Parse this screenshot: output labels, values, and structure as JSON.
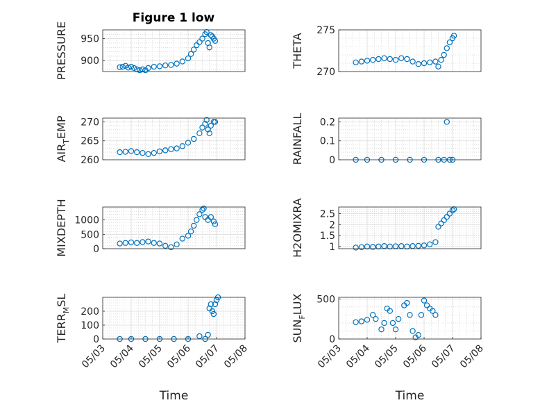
{
  "title": "Figure 1 low",
  "chart_data": [
    {
      "type": "scatter",
      "ylabel": "PRESSURE",
      "ylim": [
        875,
        970
      ],
      "yticks": [
        "900",
        "950"
      ],
      "ytick_values": [
        900,
        950
      ],
      "xlim": [
        0,
        5
      ],
      "xticks": [],
      "xlabel": "",
      "grid": true,
      "color": "#0072BD",
      "points": [
        [
          0.6,
          885
        ],
        [
          0.7,
          886
        ],
        [
          0.8,
          888
        ],
        [
          0.9,
          884
        ],
        [
          1.0,
          886
        ],
        [
          1.1,
          883
        ],
        [
          1.2,
          880
        ],
        [
          1.3,
          878
        ],
        [
          1.4,
          880
        ],
        [
          1.5,
          878
        ],
        [
          1.6,
          883
        ],
        [
          1.8,
          886
        ],
        [
          2.0,
          887
        ],
        [
          2.2,
          889
        ],
        [
          2.4,
          890
        ],
        [
          2.6,
          893
        ],
        [
          2.8,
          898
        ],
        [
          3.0,
          905
        ],
        [
          3.1,
          915
        ],
        [
          3.2,
          925
        ],
        [
          3.3,
          935
        ],
        [
          3.4,
          942
        ],
        [
          3.5,
          950
        ],
        [
          3.6,
          960
        ],
        [
          3.65,
          965
        ],
        [
          3.7,
          940
        ],
        [
          3.75,
          930
        ],
        [
          3.8,
          958
        ],
        [
          3.85,
          955
        ],
        [
          3.9,
          950
        ],
        [
          3.95,
          945
        ]
      ]
    },
    {
      "type": "scatter",
      "ylabel": "THETA",
      "ylim": [
        270,
        275
      ],
      "yticks": [
        "270",
        "275"
      ],
      "ytick_values": [
        270,
        275
      ],
      "xlim": [
        0,
        5
      ],
      "xticks": [],
      "xlabel": "",
      "grid": true,
      "color": "#0072BD",
      "points": [
        [
          0.6,
          271.1
        ],
        [
          0.8,
          271.2
        ],
        [
          1.0,
          271.3
        ],
        [
          1.2,
          271.4
        ],
        [
          1.4,
          271.5
        ],
        [
          1.6,
          271.6
        ],
        [
          1.8,
          271.5
        ],
        [
          2.0,
          271.4
        ],
        [
          2.2,
          271.6
        ],
        [
          2.4,
          271.5
        ],
        [
          2.6,
          271.2
        ],
        [
          2.8,
          270.9
        ],
        [
          3.0,
          271.0
        ],
        [
          3.2,
          271.1
        ],
        [
          3.4,
          271.2
        ],
        [
          3.5,
          270.6
        ],
        [
          3.6,
          271.4
        ],
        [
          3.7,
          272.0
        ],
        [
          3.8,
          272.8
        ],
        [
          3.9,
          273.5
        ],
        [
          4.0,
          274.0
        ],
        [
          4.05,
          274.3
        ]
      ]
    },
    {
      "type": "scatter",
      "ylabel": "AIR_TEMP",
      "ylim": [
        260,
        271
      ],
      "yticks": [
        "260",
        "265",
        "270"
      ],
      "ytick_values": [
        260,
        265,
        270
      ],
      "xlim": [
        0,
        5
      ],
      "xticks": [],
      "xlabel": "",
      "grid": true,
      "color": "#0072BD",
      "points": [
        [
          0.6,
          262
        ],
        [
          0.8,
          262.1
        ],
        [
          1.0,
          262.3
        ],
        [
          1.2,
          262
        ],
        [
          1.4,
          261.8
        ],
        [
          1.6,
          261.5
        ],
        [
          1.8,
          261.8
        ],
        [
          2.0,
          262.2
        ],
        [
          2.2,
          262.5
        ],
        [
          2.4,
          262.8
        ],
        [
          2.6,
          263
        ],
        [
          2.8,
          263.6
        ],
        [
          3.0,
          264.5
        ],
        [
          3.2,
          265.5
        ],
        [
          3.4,
          267.0
        ],
        [
          3.5,
          268.5
        ],
        [
          3.6,
          269.5
        ],
        [
          3.65,
          270.5
        ],
        [
          3.7,
          268
        ],
        [
          3.75,
          267
        ],
        [
          3.8,
          269
        ],
        [
          3.9,
          270
        ],
        [
          3.95,
          270
        ]
      ]
    },
    {
      "type": "scatter",
      "ylabel": "RAINFALL",
      "ylim": [
        0,
        0.22
      ],
      "yticks": [
        "0",
        "0.1",
        "0.2"
      ],
      "ytick_values": [
        0,
        0.1,
        0.2
      ],
      "xlim": [
        0,
        5
      ],
      "xticks": [],
      "xlabel": "",
      "grid": true,
      "color": "#0072BD",
      "points": [
        [
          0.6,
          0
        ],
        [
          1.0,
          0
        ],
        [
          1.5,
          0
        ],
        [
          2.0,
          0
        ],
        [
          2.5,
          0
        ],
        [
          3.0,
          0
        ],
        [
          3.5,
          0
        ],
        [
          3.7,
          0
        ],
        [
          3.8,
          0.2
        ],
        [
          3.9,
          0
        ],
        [
          4.0,
          0
        ]
      ]
    },
    {
      "type": "scatter",
      "ylabel": "MIXDEPTH",
      "ylim": [
        0,
        1450
      ],
      "yticks": [
        "0",
        "500",
        "1000"
      ],
      "ytick_values": [
        0,
        500,
        1000
      ],
      "xlim": [
        0,
        5
      ],
      "xticks": [],
      "xlabel": "",
      "grid": true,
      "color": "#0072BD",
      "points": [
        [
          0.6,
          180
        ],
        [
          0.8,
          200
        ],
        [
          1.0,
          220
        ],
        [
          1.2,
          200
        ],
        [
          1.4,
          230
        ],
        [
          1.6,
          250
        ],
        [
          1.8,
          200
        ],
        [
          2.0,
          180
        ],
        [
          2.2,
          100
        ],
        [
          2.4,
          50
        ],
        [
          2.6,
          150
        ],
        [
          2.8,
          350
        ],
        [
          3.0,
          450
        ],
        [
          3.1,
          600
        ],
        [
          3.2,
          800
        ],
        [
          3.3,
          1000
        ],
        [
          3.4,
          1200
        ],
        [
          3.5,
          1350
        ],
        [
          3.55,
          1400
        ],
        [
          3.6,
          1100
        ],
        [
          3.7,
          1000
        ],
        [
          3.8,
          1100
        ],
        [
          3.9,
          950
        ],
        [
          3.95,
          850
        ]
      ]
    },
    {
      "type": "scatter",
      "ylabel": "H2OMIXRA",
      "ylim": [
        0.9,
        2.8
      ],
      "yticks": [
        "1",
        "1.5",
        "2",
        "2.5"
      ],
      "ytick_values": [
        1,
        1.5,
        2,
        2.5
      ],
      "xlim": [
        0,
        5
      ],
      "xticks": [],
      "xlabel": "",
      "grid": true,
      "color": "#0072BD",
      "points": [
        [
          0.6,
          0.95
        ],
        [
          0.8,
          0.97
        ],
        [
          1.0,
          1.0
        ],
        [
          1.2,
          0.98
        ],
        [
          1.4,
          1.0
        ],
        [
          1.6,
          1.02
        ],
        [
          1.8,
          1.0
        ],
        [
          2.0,
          1.01
        ],
        [
          2.2,
          1.02
        ],
        [
          2.4,
          1.0
        ],
        [
          2.6,
          1.02
        ],
        [
          2.8,
          1.03
        ],
        [
          3.0,
          1.05
        ],
        [
          3.2,
          1.1
        ],
        [
          3.4,
          1.2
        ],
        [
          3.5,
          1.9
        ],
        [
          3.6,
          2.05
        ],
        [
          3.7,
          2.2
        ],
        [
          3.8,
          2.35
        ],
        [
          3.9,
          2.5
        ],
        [
          4.0,
          2.65
        ],
        [
          4.05,
          2.7
        ]
      ]
    },
    {
      "type": "scatter",
      "ylabel": "TERR_MSL",
      "ylim": [
        0,
        300
      ],
      "yticks": [
        "0",
        "100",
        "200"
      ],
      "ytick_values": [
        0,
        100,
        200
      ],
      "xlim": [
        0,
        5
      ],
      "xticks": [
        "05/03",
        "05/04",
        "05/05",
        "05/06",
        "05/07",
        "05/08"
      ],
      "xtick_values": [
        0,
        1,
        2,
        3,
        4,
        5
      ],
      "xlabel": "Time",
      "grid": true,
      "color": "#0072BD",
      "points": [
        [
          0.6,
          0
        ],
        [
          1.0,
          0
        ],
        [
          1.5,
          0
        ],
        [
          2.0,
          0
        ],
        [
          2.5,
          0
        ],
        [
          3.0,
          0
        ],
        [
          3.4,
          20
        ],
        [
          3.6,
          0
        ],
        [
          3.7,
          30
        ],
        [
          3.75,
          220
        ],
        [
          3.8,
          250
        ],
        [
          3.85,
          200
        ],
        [
          3.9,
          180
        ],
        [
          3.95,
          250
        ],
        [
          4.0,
          280
        ],
        [
          4.05,
          300
        ]
      ]
    },
    {
      "type": "scatter",
      "ylabel": "SUN_FLUX",
      "ylim": [
        0,
        520
      ],
      "yticks": [
        "0",
        "500"
      ],
      "ytick_values": [
        0,
        500
      ],
      "xlim": [
        0,
        5
      ],
      "xticks": [
        "05/03",
        "05/04",
        "05/05",
        "05/06",
        "05/07",
        "05/08"
      ],
      "xtick_values": [
        0,
        1,
        2,
        3,
        4,
        5
      ],
      "xlabel": "Time",
      "grid": true,
      "color": "#0072BD",
      "points": [
        [
          0.6,
          210
        ],
        [
          0.8,
          220
        ],
        [
          1.0,
          240
        ],
        [
          1.2,
          300
        ],
        [
          1.3,
          250
        ],
        [
          1.5,
          120
        ],
        [
          1.6,
          200
        ],
        [
          1.7,
          380
        ],
        [
          1.8,
          350
        ],
        [
          1.9,
          200
        ],
        [
          2.0,
          120
        ],
        [
          2.1,
          250
        ],
        [
          2.3,
          420
        ],
        [
          2.4,
          450
        ],
        [
          2.5,
          300
        ],
        [
          2.6,
          100
        ],
        [
          2.7,
          20
        ],
        [
          2.8,
          50
        ],
        [
          2.9,
          300
        ],
        [
          3.0,
          480
        ],
        [
          3.1,
          420
        ],
        [
          3.2,
          380
        ],
        [
          3.3,
          350
        ],
        [
          3.4,
          300
        ]
      ]
    }
  ]
}
